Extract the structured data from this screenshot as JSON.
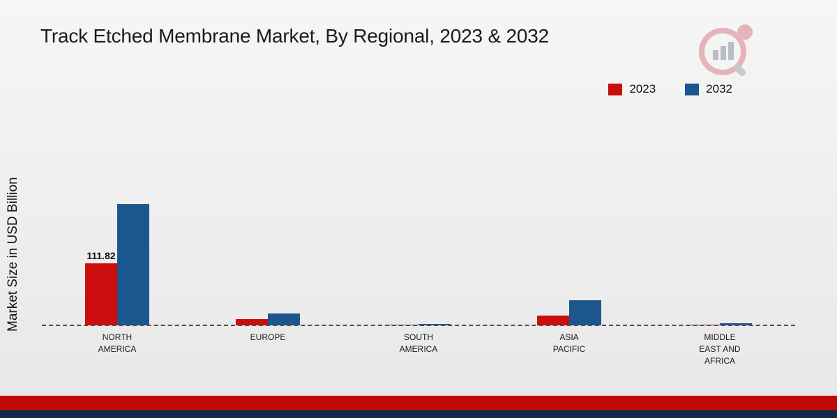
{
  "title": "Track Etched Membrane Market, By Regional, 2023 & 2032",
  "ylabel": "Market Size in USD Billion",
  "brand": {
    "logo": "bar-chart-magnifier-logo"
  },
  "chart_data": {
    "type": "bar",
    "categories": [
      "NORTH AMERICA",
      "EUROPE",
      "SOUTH AMERICA",
      "ASIA PACIFIC",
      "MIDDLE EAST AND AFRICA"
    ],
    "series": [
      {
        "name": "2023",
        "color": "#cc0d0d",
        "values": [
          111.82,
          12,
          1.5,
          18,
          1.5
        ]
      },
      {
        "name": "2032",
        "color": "#1b568f",
        "values": [
          220,
          22,
          3,
          45,
          4
        ]
      }
    ],
    "annotations": [
      {
        "category": "NORTH AMERICA",
        "series": "2023",
        "text": "111.82"
      }
    ],
    "ylim": [
      0,
      240
    ],
    "baseline": "dashed",
    "legend_position": "top-right",
    "grid": false
  },
  "footer": {
    "red_strip": "#c00a0a",
    "navy_strip": "#0e2a4d"
  }
}
